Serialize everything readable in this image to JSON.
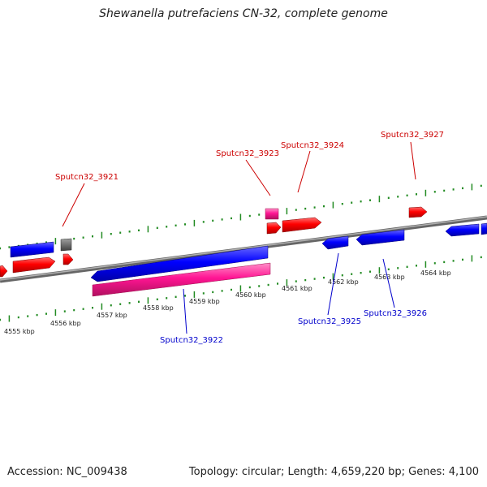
{
  "title": "Shewanella putrefaciens CN-32, complete genome",
  "footer": {
    "accession": "Accession: NC_009438",
    "summary": "Topology: circular; Length: 4,659,220 bp; Genes: 4,100"
  },
  "scale_labels": [
    "4555 kbp",
    "4556 kbp",
    "4557 kbp",
    "4558 kbp",
    "4559 kbp",
    "4560 kbp",
    "4561 kbp",
    "4562 kbp",
    "4563 kbp",
    "4564 kbp"
  ],
  "gene_labels": {
    "forward": [
      "Sputcn32_3921",
      "Sputcn32_3923",
      "Sputcn32_3924",
      "Sputcn32_3927"
    ],
    "reverse": [
      "Sputcn32_3922",
      "Sputcn32_3925",
      "Sputcn32_3926"
    ]
  },
  "colors": {
    "forward_gene": "#ff0000",
    "reverse_gene": "#0000ff",
    "rna_gene": "#ff1493",
    "pseudo_gene": "#707070",
    "axis": "#808080",
    "tick": "#228b22",
    "forward_label": "#cc0000",
    "reverse_label": "#0000cc"
  }
}
